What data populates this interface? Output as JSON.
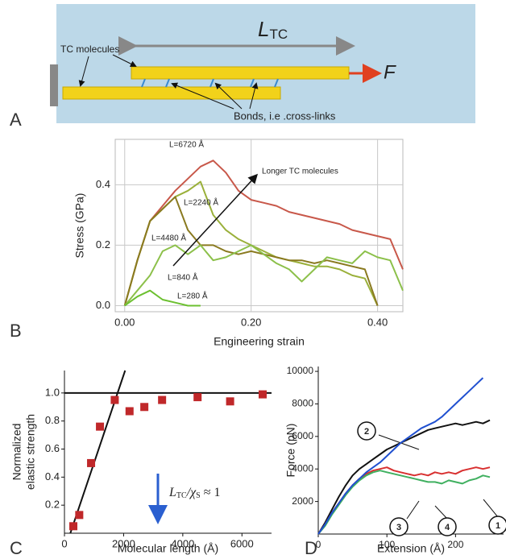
{
  "panel_labels": [
    "A",
    "B",
    "C",
    "D"
  ],
  "diagram": {
    "length_symbol": "L",
    "length_subscript": "TC",
    "force_symbol": "F",
    "molecules_label": "TC molecules",
    "bonds_label": "Bonds, i.e .cross-links"
  },
  "chart_data": [
    {
      "type": "line",
      "y_label": "Stress (GPa)",
      "x_label": "Engineering strain",
      "annotation": "Longer TC molecules",
      "x": [
        0,
        0.02,
        0.04,
        0.06,
        0.08,
        0.1,
        0.12,
        0.14,
        0.16,
        0.18,
        0.2,
        0.22,
        0.24,
        0.26,
        0.28,
        0.3,
        0.32,
        0.34,
        0.36,
        0.38,
        0.4,
        0.42,
        0.44
      ],
      "series": [
        {
          "name": "L=6720 Å",
          "color": "#c8584a",
          "values": [
            0,
            0.15,
            0.28,
            0.33,
            0.38,
            0.42,
            0.46,
            0.48,
            0.44,
            0.38,
            0.35,
            0.34,
            0.33,
            0.31,
            0.3,
            0.29,
            0.28,
            0.27,
            0.25,
            0.24,
            0.23,
            0.22,
            0.12
          ]
        },
        {
          "name": "L=2240 Å",
          "color": "#9ab03a",
          "values": [
            0,
            0.15,
            0.28,
            0.32,
            0.36,
            0.38,
            0.41,
            0.3,
            0.25,
            0.22,
            0.2,
            0.18,
            0.16,
            0.15,
            0.14,
            0.13,
            0.13,
            0.12,
            0.1,
            0.09,
            0,
            null,
            null
          ]
        },
        {
          "name": "L=4480 Å",
          "color": "#8a7a20",
          "values": [
            0,
            0.15,
            0.28,
            0.32,
            0.36,
            0.25,
            0.2,
            0.2,
            0.18,
            0.17,
            0.18,
            0.17,
            0.16,
            0.15,
            0.15,
            0.14,
            0.15,
            0.14,
            0.13,
            0.12,
            0,
            null,
            null
          ]
        },
        {
          "name": "L=840 Å",
          "color": "#8cc04a",
          "values": [
            0,
            0.05,
            0.1,
            0.18,
            0.2,
            0.17,
            0.2,
            0.15,
            0.16,
            0.18,
            0.2,
            0.17,
            0.14,
            0.12,
            0.08,
            0.12,
            0.16,
            0.15,
            0.14,
            0.18,
            0.16,
            0.15,
            0.05
          ]
        },
        {
          "name": "L=280 Å",
          "color": "#6cc030",
          "values": [
            0,
            0.03,
            0.05,
            0.02,
            0.01,
            0,
            0,
            null,
            null,
            null,
            null,
            null,
            null,
            null,
            null,
            null,
            null,
            null,
            null,
            null,
            null,
            null,
            null
          ]
        }
      ],
      "xlim": [
        -0.015,
        0.44
      ],
      "ylim": [
        -0.02,
        0.55
      ],
      "xticks": [
        {
          "value": 0,
          "label": "0.00"
        },
        {
          "value": 0.2,
          "label": "0.20"
        },
        {
          "value": 0.4,
          "label": "0.40"
        }
      ],
      "yticks": [
        {
          "value": 0,
          "label": "0.0"
        },
        0.2,
        0.4
      ],
      "grid": true
    },
    {
      "type": "scatter",
      "y_label": [
        "Normalized",
        "elastic strength"
      ],
      "x_label": "Molecular length (Å)",
      "annotation": {
        "main": "L",
        "sub": "TC",
        "divider": "/χ",
        "sub2": "S",
        "rest": " ≈ 1"
      },
      "x": [
        300,
        500,
        900,
        1200,
        1700,
        2200,
        2700,
        3300,
        4500,
        5600,
        6700
      ],
      "values": [
        0.05,
        0.13,
        0.5,
        0.76,
        0.95,
        0.87,
        0.9,
        0.95,
        0.97,
        0.94,
        0.99
      ],
      "color": "#c0282a",
      "reference_lines": [
        {
          "x": [
            0,
            7000
          ],
          "values": [
            1,
            1
          ]
        },
        {
          "x": [
            200,
            2050
          ],
          "values": [
            0,
            1.16
          ]
        }
      ],
      "xlim": [
        0,
        7000
      ],
      "ylim": [
        0,
        1.16
      ],
      "xticks": [
        0,
        2000,
        4000,
        6000
      ],
      "yticks": [
        0.2,
        0.4,
        0.6,
        0.8,
        {
          "value": 1,
          "label": "1.0"
        }
      ],
      "grid": false
    },
    {
      "type": "line",
      "y_label": "Force (pN)",
      "x_label": "Extension (Å)",
      "x": [
        0,
        10,
        20,
        30,
        40,
        50,
        60,
        70,
        80,
        90,
        100,
        110,
        120,
        130,
        140,
        150,
        160,
        170,
        180,
        190,
        200,
        210,
        220,
        230,
        240,
        250
      ],
      "series": [
        {
          "name": "2",
          "color": "#111111",
          "values": [
            0,
            700,
            1500,
            2300,
            3000,
            3600,
            4000,
            4300,
            4600,
            4900,
            5200,
            5400,
            5600,
            5800,
            6000,
            6200,
            6400,
            6500,
            6600,
            6700,
            6800,
            6700,
            6800,
            6900,
            6800,
            7000
          ]
        },
        {
          "name": "4",
          "color": "#d83030",
          "values": [
            0,
            600,
            1300,
            1900,
            2500,
            3000,
            3400,
            3700,
            3900,
            4000,
            4100,
            3900,
            3800,
            3700,
            3600,
            3700,
            3600,
            3800,
            3700,
            3800,
            3700,
            3900,
            4000,
            4100,
            4000,
            4100
          ]
        },
        {
          "name": "1",
          "color": "#40b060",
          "values": [
            0,
            500,
            1200,
            1800,
            2400,
            2900,
            3300,
            3600,
            3800,
            3900,
            3800,
            3700,
            3600,
            3500,
            3400,
            3300,
            3200,
            3200,
            3100,
            3300,
            3200,
            3100,
            3300,
            3400,
            3600,
            3500
          ]
        },
        {
          "name": "3",
          "color": "#2050d0",
          "values": [
            0,
            600,
            1300,
            1900,
            2500,
            3000,
            3400,
            3800,
            4100,
            4400,
            4800,
            5200,
            5600,
            5900,
            6200,
            6500,
            6700,
            6900,
            7200,
            7600,
            8000,
            8400,
            8800,
            9200,
            9600,
            null
          ]
        }
      ],
      "xlim": [
        0,
        270
      ],
      "ylim": [
        0,
        10300
      ],
      "xticks": [
        0,
        100,
        200
      ],
      "yticks": [
        2000,
        4000,
        6000,
        8000,
        10000
      ],
      "grid": false
    }
  ]
}
